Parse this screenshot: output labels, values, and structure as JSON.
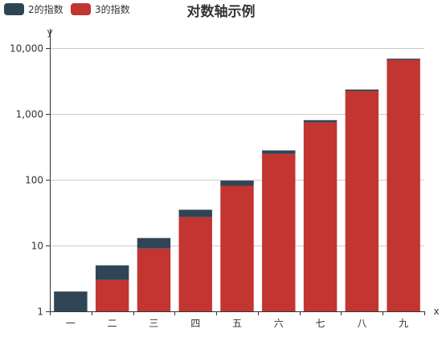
{
  "chart_data": {
    "type": "bar",
    "stacked": true,
    "title": "对数轴示例",
    "xlabel": "x",
    "ylabel": "y",
    "yscale": "log",
    "ylim": [
      1,
      10000
    ],
    "yticks": [
      "1",
      "10",
      "100",
      "1,000",
      "10,000"
    ],
    "legend_position": "top-left",
    "categories": [
      "一",
      "二",
      "三",
      "四",
      "五",
      "六",
      "七",
      "八",
      "九"
    ],
    "series": [
      {
        "name": "2的指数",
        "color": "#2f4554",
        "values": [
          1,
          2,
          4,
          8,
          16,
          32,
          64,
          128,
          256
        ]
      },
      {
        "name": "3的指数",
        "color": "#c23531",
        "values": [
          1,
          3,
          9,
          27,
          81,
          247,
          741,
          2223,
          6669
        ]
      }
    ]
  }
}
